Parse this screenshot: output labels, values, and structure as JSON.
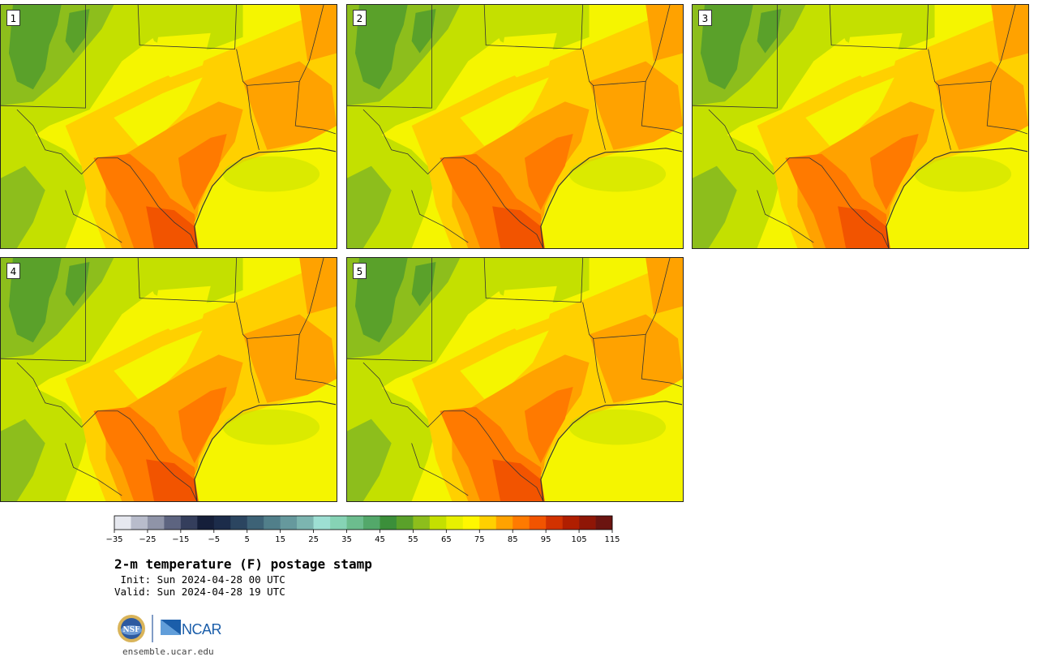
{
  "panels": [
    {
      "label": "1"
    },
    {
      "label": "2"
    },
    {
      "label": "3"
    },
    {
      "label": "4"
    },
    {
      "label": "5"
    }
  ],
  "colorbar": {
    "ticks": [
      "−35",
      "−25",
      "−15",
      "−5",
      "5",
      "15",
      "25",
      "35",
      "45",
      "55",
      "65",
      "75",
      "85",
      "95",
      "105",
      "115"
    ],
    "colors": [
      "#e6e8ef",
      "#b8bccb",
      "#8f94a8",
      "#5d6480",
      "#343e5c",
      "#151f3a",
      "#1c2c4a",
      "#2b4560",
      "#3d6276",
      "#517f8a",
      "#66999d",
      "#7cb5b0",
      "#9ddfd3",
      "#86d3b5",
      "#6cbd8e",
      "#53a86a",
      "#3b8f3a",
      "#5aa12a",
      "#8dbe1c",
      "#c4e000",
      "#e8f000",
      "#fff700",
      "#ffd000",
      "#ffa200",
      "#ff7a00",
      "#f25400",
      "#d23200",
      "#b01e00",
      "#8f1606",
      "#6b1410"
    ]
  },
  "title": "2-m temperature (F) postage stamp",
  "init_line": " Init: Sun 2024-04-28 00 UTC",
  "valid_line": "Valid: Sun 2024-04-28 19 UTC",
  "logos": {
    "nsf": "NSF",
    "ncar": "NCAR"
  },
  "website": "ensemble.ucar.edu",
  "map_colors": {
    "gulf": "#f5f500",
    "dark_green": "#5aa12a",
    "green": "#8dbe1c",
    "yellow_green": "#c4e000",
    "yellow": "#f5f500",
    "light_orange": "#ffd000",
    "orange": "#ffa200",
    "dark_orange": "#ff7a00",
    "red_orange": "#f25400",
    "border": "#333333"
  }
}
